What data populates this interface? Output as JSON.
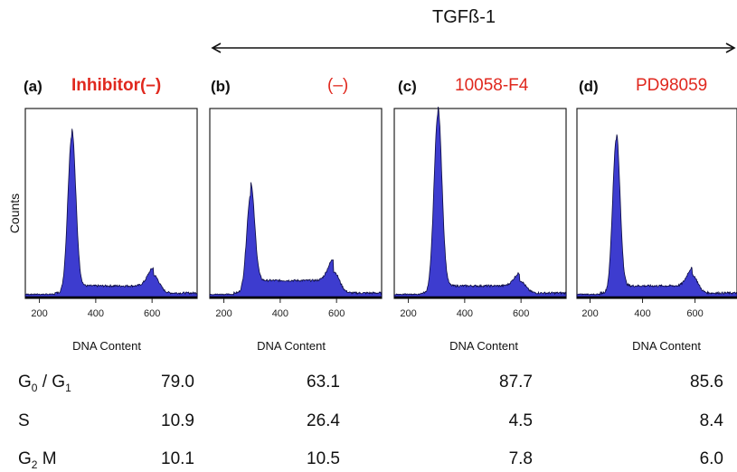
{
  "treatment_title": "TGFß-1",
  "chart_data": [
    {
      "type": "area",
      "panel": "(a)",
      "label": "Inhibitor(–)",
      "xlabel": "DNA Content",
      "ylabel": "Counts",
      "xticks": [
        200,
        400,
        600
      ],
      "xlim": [
        150,
        760
      ],
      "peaks": [
        {
          "x": 315,
          "height": 0.88
        },
        {
          "x": 605,
          "height": 0.1
        }
      ]
    },
    {
      "type": "area",
      "panel": "(b)",
      "label": "(–)",
      "xlabel": "DNA Content",
      "xticks": [
        200,
        400,
        600
      ],
      "xlim": [
        150,
        760
      ],
      "peaks": [
        {
          "x": 295,
          "height": 0.55
        },
        {
          "x": 590,
          "height": 0.12
        }
      ]
    },
    {
      "type": "area",
      "panel": "(c)",
      "label": "10058-F4",
      "xlabel": "DNA Content",
      "xticks": [
        200,
        400,
        600
      ],
      "xlim": [
        150,
        760
      ],
      "peaks": [
        {
          "x": 305,
          "height": 1.0
        },
        {
          "x": 595,
          "height": 0.07
        }
      ]
    },
    {
      "type": "area",
      "panel": "(d)",
      "label": "PD98059",
      "xlabel": "DNA Content",
      "xticks": [
        200,
        400,
        600
      ],
      "xlim": [
        150,
        760
      ],
      "peaks": [
        {
          "x": 300,
          "height": 0.86
        },
        {
          "x": 590,
          "height": 0.1
        }
      ]
    }
  ],
  "table": {
    "rows": [
      {
        "name": "G0 / G1",
        "values": [
          "79.0",
          "63.1",
          "87.7",
          "85.6"
        ]
      },
      {
        "name": "S",
        "values": [
          "10.9",
          "26.4",
          "4.5",
          "8.4"
        ]
      },
      {
        "name": "G2 M",
        "values": [
          "10.1",
          "10.5",
          "7.8",
          "6.0"
        ]
      }
    ]
  },
  "colors": {
    "fill": "#3d3ccf",
    "label": "#e0281e"
  }
}
